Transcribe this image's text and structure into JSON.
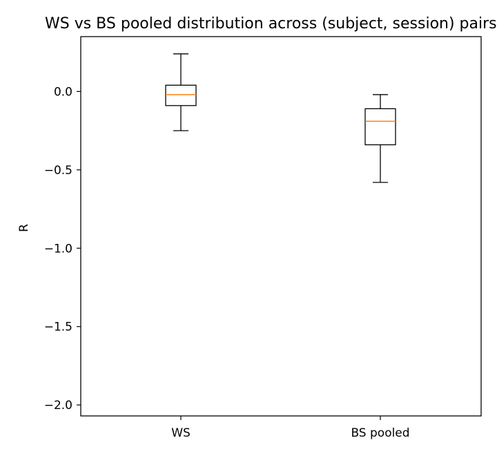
{
  "chart_data": {
    "type": "box",
    "title": "WS vs BS pooled  distribution across (subject, session) pairs",
    "xlabel": "",
    "ylabel": "R",
    "categories": [
      "WS",
      "BS pooled"
    ],
    "boxes": [
      {
        "category": "WS",
        "whisker_low": -0.25,
        "q1": -0.09,
        "median": -0.02,
        "q3": 0.04,
        "whisker_high": 0.24
      },
      {
        "category": "BS pooled",
        "whisker_low": -0.58,
        "q1": -0.34,
        "median": -0.19,
        "q3": -0.11,
        "whisker_high": -0.02
      }
    ],
    "ylim": [
      -2.07,
      0.35
    ],
    "yticks": [
      0.0,
      -0.5,
      -1.0,
      -1.5,
      -2.0
    ],
    "ytick_labels": [
      "0.0",
      "−0.5",
      "−1.0",
      "−1.5",
      "−2.0"
    ],
    "grid": false,
    "colors": {
      "box": "#000000",
      "median": "#ff7f0e"
    }
  }
}
